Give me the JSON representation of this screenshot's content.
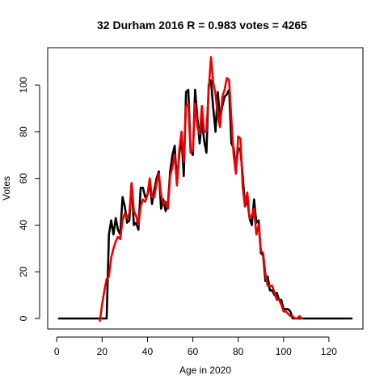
{
  "chart_data": {
    "type": "line",
    "title": "32 Durham 2016 R = 0.983 votes = 4265",
    "xlabel": "Age in 2020",
    "ylabel": "Votes",
    "xlim": [
      -4,
      135
    ],
    "ylim": [
      -4.5,
      116
    ],
    "x_ticks": [
      0,
      20,
      40,
      60,
      80,
      100,
      120
    ],
    "y_ticks": [
      0,
      20,
      40,
      60,
      80,
      100
    ],
    "grid": false,
    "legend": "none",
    "series": [
      {
        "color": "#000000",
        "points": [
          [
            1,
            0
          ],
          [
            2,
            0
          ],
          [
            3,
            0
          ],
          [
            4,
            0
          ],
          [
            5,
            0
          ],
          [
            6,
            0
          ],
          [
            7,
            0
          ],
          [
            8,
            0
          ],
          [
            9,
            0
          ],
          [
            10,
            0
          ],
          [
            11,
            0
          ],
          [
            12,
            0
          ],
          [
            13,
            0
          ],
          [
            14,
            0
          ],
          [
            15,
            0
          ],
          [
            16,
            0
          ],
          [
            17,
            0
          ],
          [
            18,
            0
          ],
          [
            19,
            0
          ],
          [
            20,
            0
          ],
          [
            21,
            0
          ],
          [
            22,
            0
          ],
          [
            23,
            36
          ],
          [
            24,
            42
          ],
          [
            25,
            36
          ],
          [
            26,
            43
          ],
          [
            27,
            38
          ],
          [
            28,
            36
          ],
          [
            29,
            52
          ],
          [
            30,
            48
          ],
          [
            31,
            41
          ],
          [
            32,
            42
          ],
          [
            33,
            58
          ],
          [
            34,
            40
          ],
          [
            35,
            41
          ],
          [
            36,
            38
          ],
          [
            37,
            56
          ],
          [
            38,
            56
          ],
          [
            39,
            52
          ],
          [
            40,
            53
          ],
          [
            41,
            58
          ],
          [
            42,
            49
          ],
          [
            43,
            55
          ],
          [
            44,
            60
          ],
          [
            45,
            63
          ],
          [
            46,
            47
          ],
          [
            47,
            51
          ],
          [
            48,
            46
          ],
          [
            49,
            49
          ],
          [
            50,
            63
          ],
          [
            51,
            70
          ],
          [
            52,
            74
          ],
          [
            53,
            58
          ],
          [
            54,
            70
          ],
          [
            55,
            78
          ],
          [
            56,
            61
          ],
          [
            57,
            97
          ],
          [
            58,
            98
          ],
          [
            59,
            72
          ],
          [
            60,
            70
          ],
          [
            61,
            98
          ],
          [
            62,
            86
          ],
          [
            63,
            75
          ],
          [
            64,
            85
          ],
          [
            65,
            76
          ],
          [
            66,
            71
          ],
          [
            67,
            100
          ],
          [
            68,
            102
          ],
          [
            69,
            90
          ],
          [
            70,
            80
          ],
          [
            71,
            97
          ],
          [
            72,
            85
          ],
          [
            73,
            91
          ],
          [
            74,
            95
          ],
          [
            75,
            96
          ],
          [
            76,
            98
          ],
          [
            77,
            75
          ],
          [
            78,
            73
          ],
          [
            79,
            64
          ],
          [
            80,
            73
          ],
          [
            81,
            72
          ],
          [
            82,
            61
          ],
          [
            83,
            48
          ],
          [
            84,
            51
          ],
          [
            85,
            43
          ],
          [
            86,
            40
          ],
          [
            87,
            51
          ],
          [
            88,
            41
          ],
          [
            89,
            42
          ],
          [
            90,
            28
          ],
          [
            91,
            27
          ],
          [
            92,
            16
          ],
          [
            93,
            18
          ],
          [
            94,
            12
          ],
          [
            95,
            12
          ],
          [
            96,
            10
          ],
          [
            97,
            11
          ],
          [
            98,
            8
          ],
          [
            99,
            8
          ],
          [
            100,
            4
          ],
          [
            101,
            4
          ],
          [
            102,
            4
          ],
          [
            103,
            3
          ],
          [
            104,
            0
          ],
          [
            105,
            0
          ],
          [
            106,
            0
          ],
          [
            107,
            0
          ],
          [
            108,
            0
          ],
          [
            110,
            0
          ],
          [
            115,
            0
          ],
          [
            120,
            0
          ],
          [
            125,
            0
          ],
          [
            130,
            0
          ]
        ]
      },
      {
        "color": "#ee0000",
        "points": [
          [
            19,
            -1
          ],
          [
            20,
            6
          ],
          [
            21,
            12
          ],
          [
            22,
            17
          ],
          [
            23,
            18
          ],
          [
            24,
            26
          ],
          [
            25,
            30
          ],
          [
            26,
            33
          ],
          [
            27,
            35
          ],
          [
            28,
            34
          ],
          [
            29,
            42
          ],
          [
            30,
            45
          ],
          [
            31,
            43
          ],
          [
            32,
            45
          ],
          [
            33,
            58
          ],
          [
            34,
            46
          ],
          [
            35,
            44
          ],
          [
            36,
            40
          ],
          [
            37,
            48
          ],
          [
            38,
            51
          ],
          [
            39,
            50
          ],
          [
            40,
            53
          ],
          [
            41,
            60
          ],
          [
            42,
            52
          ],
          [
            43,
            52
          ],
          [
            44,
            58
          ],
          [
            45,
            62
          ],
          [
            46,
            53
          ],
          [
            47,
            49
          ],
          [
            48,
            50
          ],
          [
            49,
            47
          ],
          [
            50,
            61
          ],
          [
            51,
            65
          ],
          [
            52,
            70
          ],
          [
            53,
            57
          ],
          [
            54,
            72
          ],
          [
            55,
            80
          ],
          [
            56,
            67
          ],
          [
            57,
            91
          ],
          [
            58,
            92
          ],
          [
            59,
            71
          ],
          [
            60,
            72
          ],
          [
            61,
            92
          ],
          [
            62,
            82
          ],
          [
            63,
            79
          ],
          [
            64,
            91
          ],
          [
            65,
            80
          ],
          [
            66,
            80
          ],
          [
            67,
            98
          ],
          [
            68,
            112
          ],
          [
            69,
            101
          ],
          [
            70,
            96
          ],
          [
            71,
            87
          ],
          [
            72,
            82
          ],
          [
            73,
            95
          ],
          [
            74,
            98
          ],
          [
            75,
            103
          ],
          [
            76,
            102
          ],
          [
            77,
            85
          ],
          [
            78,
            70
          ],
          [
            79,
            62
          ],
          [
            80,
            78
          ],
          [
            81,
            77
          ],
          [
            82,
            56
          ],
          [
            83,
            48
          ],
          [
            84,
            54
          ],
          [
            85,
            43
          ],
          [
            86,
            44
          ],
          [
            87,
            47
          ],
          [
            88,
            36
          ],
          [
            89,
            40
          ],
          [
            90,
            29
          ],
          [
            91,
            28
          ],
          [
            92,
            19
          ],
          [
            93,
            14
          ],
          [
            94,
            14
          ],
          [
            95,
            14
          ],
          [
            96,
            11
          ],
          [
            97,
            8
          ],
          [
            98,
            8
          ],
          [
            99,
            6
          ],
          [
            100,
            3
          ],
          [
            101,
            3
          ],
          [
            102,
            2
          ],
          [
            103,
            1
          ],
          [
            104,
            1
          ],
          [
            105,
            0
          ],
          [
            106,
            0
          ],
          [
            107,
            1
          ],
          [
            108,
            0
          ]
        ]
      }
    ]
  }
}
